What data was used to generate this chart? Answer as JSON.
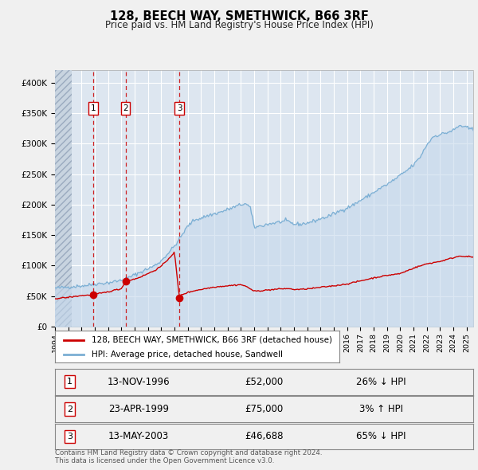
{
  "title": "128, BEECH WAY, SMETHWICK, B66 3RF",
  "subtitle": "Price paid vs. HM Land Registry's House Price Index (HPI)",
  "bg_color": "#f0f0f0",
  "plot_bg_color": "#dde6f0",
  "red_line_color": "#cc0000",
  "blue_line_color": "#7bafd4",
  "blue_fill_color": "#c5d8ec",
  "grid_color": "#ffffff",
  "purchases": [
    {
      "date_year": 1996.87,
      "price": 52000,
      "label": "1"
    },
    {
      "date_year": 1999.31,
      "price": 75000,
      "label": "2"
    },
    {
      "date_year": 2003.37,
      "price": 46688,
      "label": "3"
    }
  ],
  "legend_entries": [
    "128, BEECH WAY, SMETHWICK, B66 3RF (detached house)",
    "HPI: Average price, detached house, Sandwell"
  ],
  "table_rows": [
    {
      "num": "1",
      "date": "13-NOV-1996",
      "price": "£52,000",
      "hpi": "26% ↓ HPI"
    },
    {
      "num": "2",
      "date": "23-APR-1999",
      "price": "£75,000",
      "hpi": "3% ↑ HPI"
    },
    {
      "num": "3",
      "date": "13-MAY-2003",
      "price": "£46,688",
      "hpi": "65% ↓ HPI"
    }
  ],
  "footer": "Contains HM Land Registry data © Crown copyright and database right 2024.\nThis data is licensed under the Open Government Licence v3.0.",
  "ylim": [
    0,
    420000
  ],
  "yticks": [
    0,
    50000,
    100000,
    150000,
    200000,
    250000,
    300000,
    350000,
    400000
  ],
  "ytick_labels": [
    "£0",
    "£50K",
    "£100K",
    "£150K",
    "£200K",
    "£250K",
    "£300K",
    "£350K",
    "£400K"
  ],
  "xmin": 1994.0,
  "xmax": 2025.5
}
